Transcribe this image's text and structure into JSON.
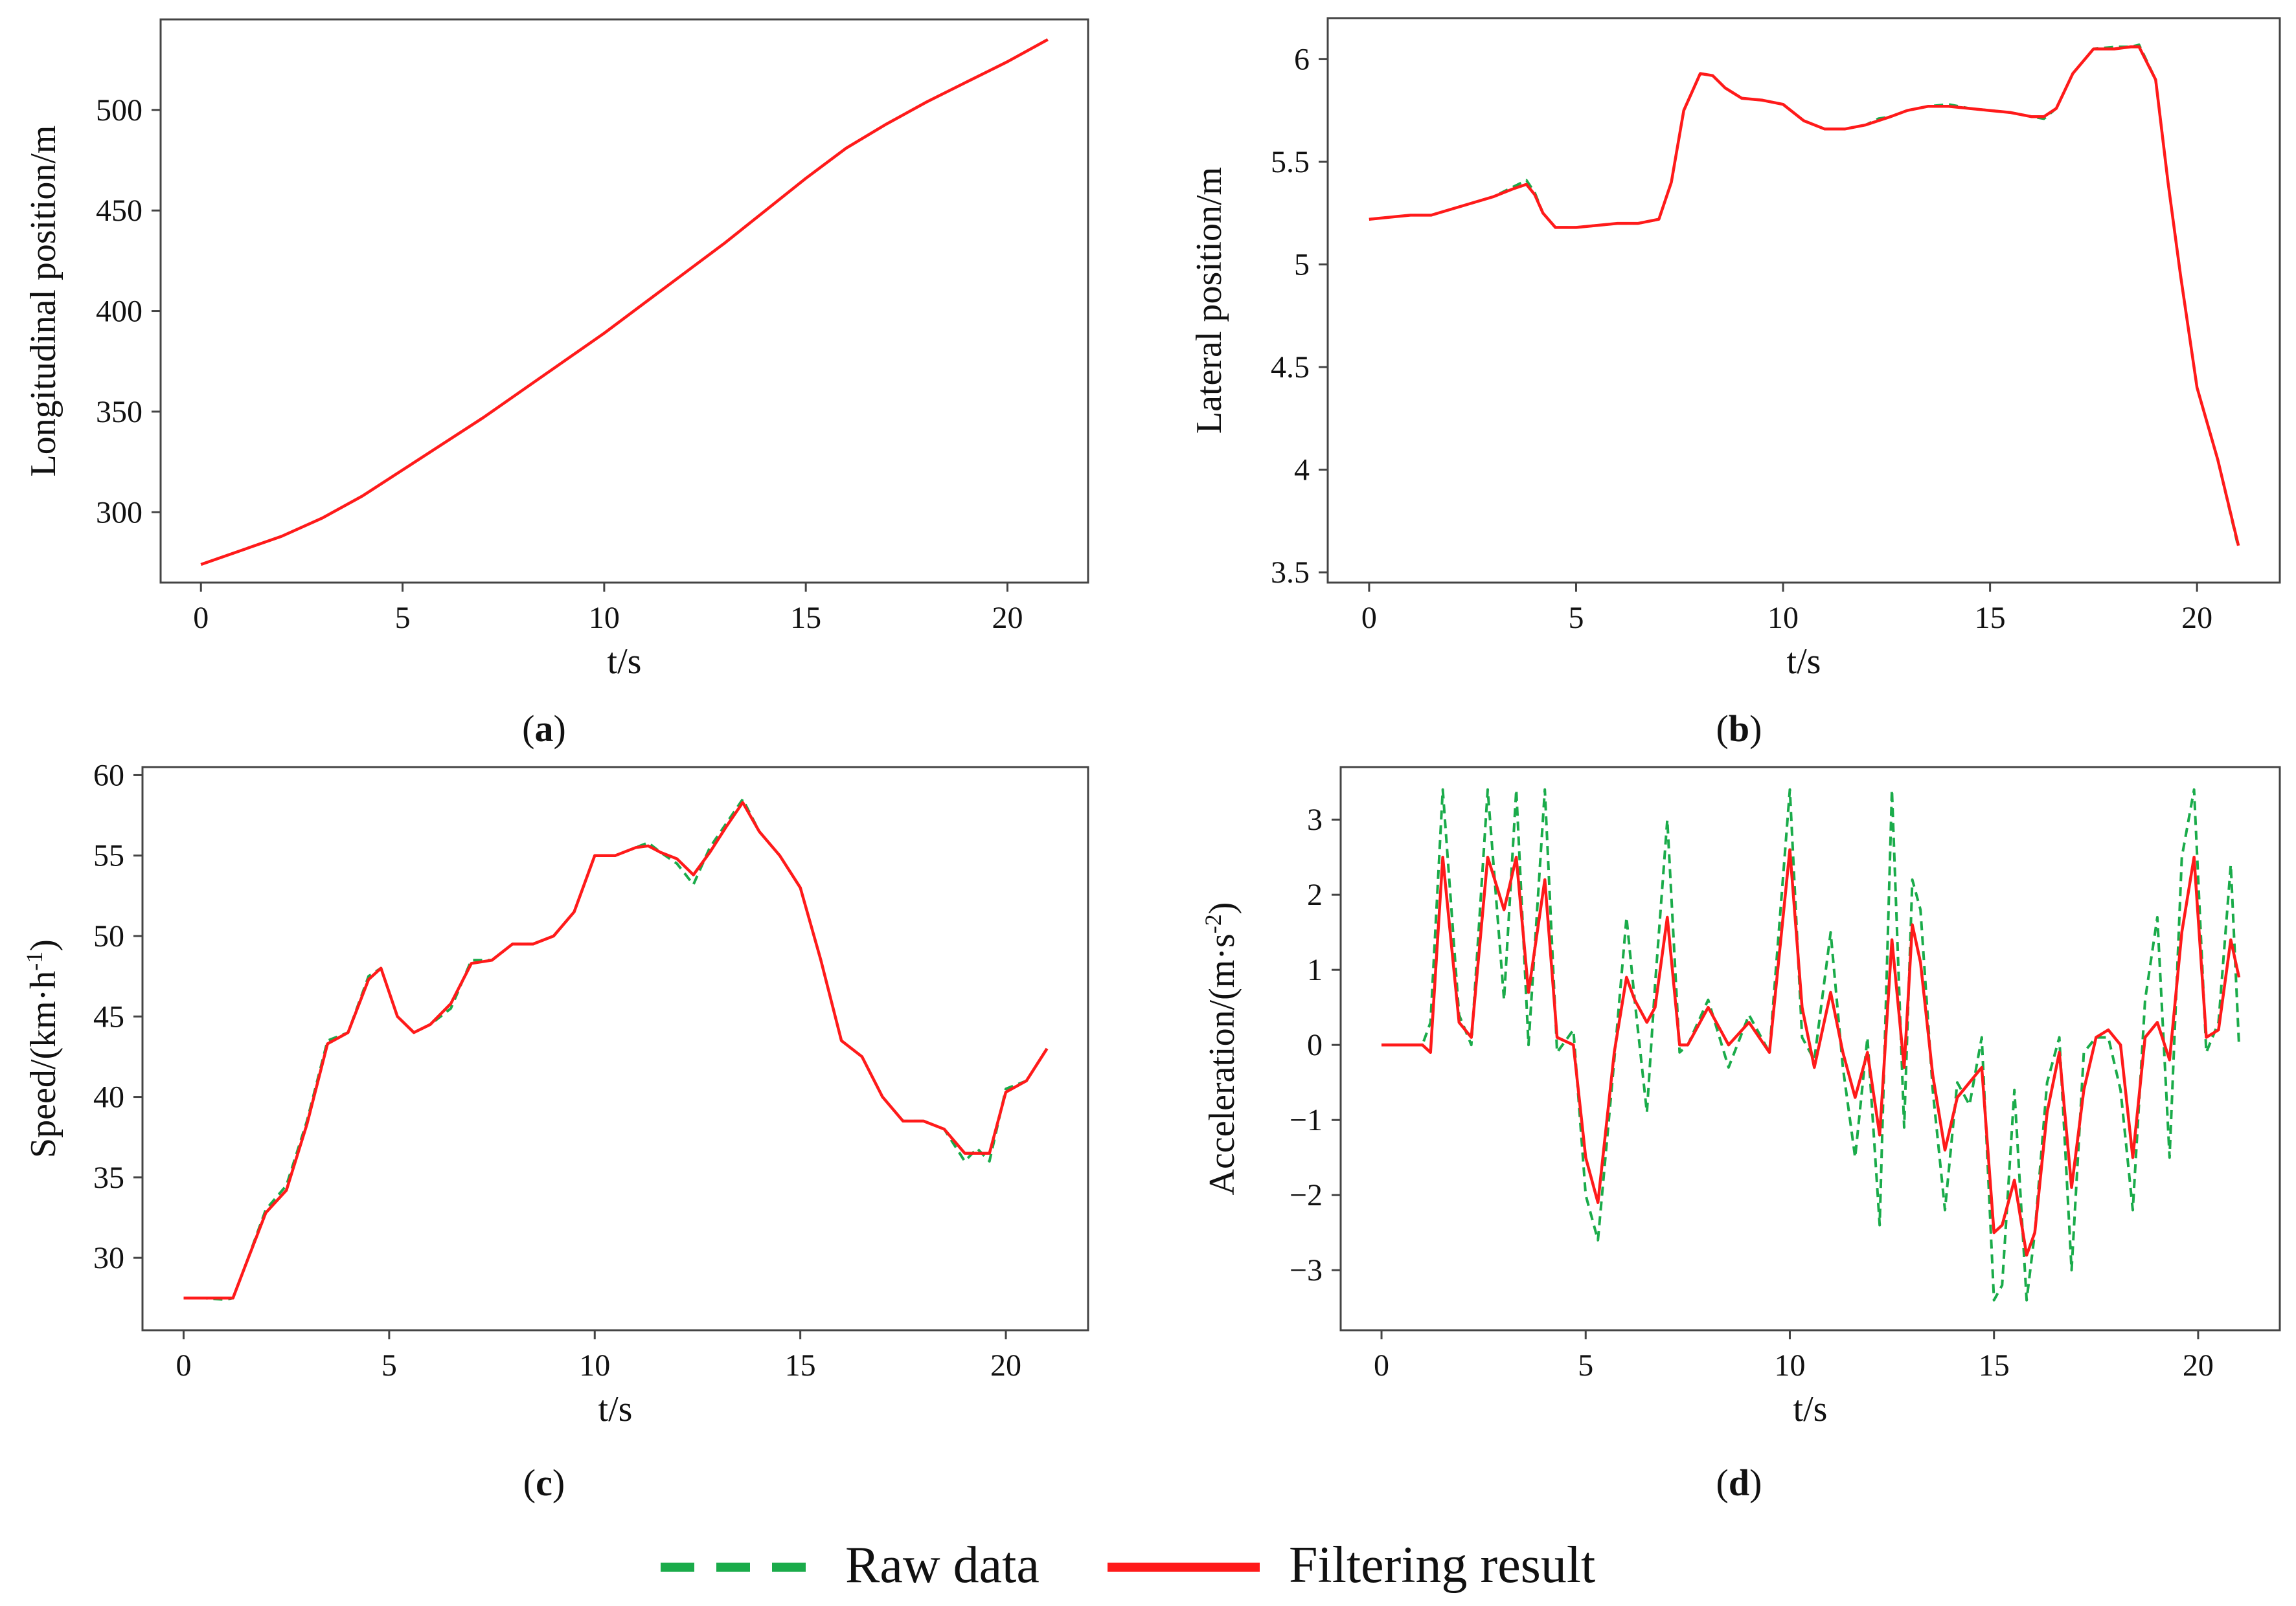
{
  "legend": [
    {
      "label": "Raw data",
      "color": "#1aab4a",
      "style": "dashed"
    },
    {
      "label": "Filtering result",
      "color": "#ff1a1a",
      "style": "solid"
    }
  ],
  "chart_data": [
    {
      "id": "a",
      "type": "line",
      "caption_letter": "a",
      "xlabel": "t/s",
      "ylabel": "Longitudinal position/m",
      "xlim": [
        -1,
        22
      ],
      "ylim": [
        265,
        545
      ],
      "xticks": [
        0,
        5,
        10,
        15,
        20
      ],
      "yticks": [
        300,
        350,
        400,
        450,
        500
      ],
      "series": [
        {
          "name": "Raw data",
          "x": [
            0,
            2,
            3,
            4,
            5,
            6,
            7,
            8,
            9,
            10,
            11,
            12,
            13,
            14,
            15,
            16,
            17,
            18,
            19,
            20,
            21
          ],
          "y": [
            274,
            288,
            297,
            308,
            321,
            334,
            347,
            361,
            375,
            389,
            404,
            419,
            434,
            450,
            466,
            481,
            493,
            504,
            514,
            524,
            535
          ]
        },
        {
          "name": "Filtering result",
          "x": [
            0,
            2,
            3,
            4,
            5,
            6,
            7,
            8,
            9,
            10,
            11,
            12,
            13,
            14,
            15,
            16,
            17,
            18,
            19,
            20,
            21
          ],
          "y": [
            274,
            288,
            297,
            308,
            321,
            334,
            347,
            361,
            375,
            389,
            404,
            419,
            434,
            450,
            466,
            481,
            493,
            504,
            514,
            524,
            535
          ]
        }
      ]
    },
    {
      "id": "b",
      "type": "line",
      "caption_letter": "b",
      "xlabel": "t/s",
      "ylabel": "Lateral position/m",
      "xlim": [
        -1,
        22
      ],
      "ylim": [
        3.45,
        6.2
      ],
      "xticks": [
        0,
        5,
        10,
        15,
        20
      ],
      "yticks": [
        3.5,
        4.0,
        4.5,
        5.0,
        5.5,
        6.0
      ],
      "series": [
        {
          "name": "Raw data",
          "x": [
            0,
            1,
            1.5,
            2,
            2.5,
            3,
            3.5,
            3.8,
            4,
            4.2,
            4.5,
            5,
            6,
            6.5,
            7,
            7.3,
            7.6,
            8,
            8.3,
            8.6,
            9,
            9.5,
            10,
            10.5,
            11,
            11.5,
            12,
            12.3,
            12.6,
            13,
            13.5,
            14,
            14.5,
            15,
            15.5,
            16,
            16.3,
            16.6,
            17,
            17.5,
            18,
            18.4,
            18.6,
            19,
            19.3,
            19.6,
            20,
            20.5,
            21
          ],
          "y": [
            5.22,
            5.24,
            5.24,
            5.27,
            5.3,
            5.33,
            5.38,
            5.41,
            5.35,
            5.25,
            5.18,
            5.18,
            5.2,
            5.2,
            5.22,
            5.4,
            5.75,
            5.93,
            5.92,
            5.86,
            5.81,
            5.8,
            5.78,
            5.7,
            5.66,
            5.66,
            5.68,
            5.71,
            5.72,
            5.75,
            5.77,
            5.78,
            5.76,
            5.75,
            5.74,
            5.72,
            5.71,
            5.76,
            5.93,
            6.05,
            6.06,
            6.06,
            6.07,
            5.9,
            5.4,
            4.95,
            4.4,
            4.05,
            3.62
          ]
        },
        {
          "name": "Filtering result",
          "x": [
            0,
            1,
            1.5,
            2,
            2.5,
            3,
            3.5,
            3.8,
            4,
            4.2,
            4.5,
            5,
            6,
            6.5,
            7,
            7.3,
            7.6,
            8,
            8.3,
            8.6,
            9,
            9.5,
            10,
            10.5,
            11,
            11.5,
            12,
            12.3,
            12.6,
            13,
            13.5,
            14,
            14.5,
            15,
            15.5,
            16,
            16.3,
            16.6,
            17,
            17.5,
            18,
            18.4,
            18.6,
            19,
            19.3,
            19.6,
            20,
            20.5,
            21
          ],
          "y": [
            5.22,
            5.24,
            5.24,
            5.27,
            5.3,
            5.33,
            5.37,
            5.39,
            5.34,
            5.25,
            5.18,
            5.18,
            5.2,
            5.2,
            5.22,
            5.4,
            5.75,
            5.93,
            5.92,
            5.86,
            5.81,
            5.8,
            5.78,
            5.7,
            5.66,
            5.66,
            5.68,
            5.7,
            5.72,
            5.75,
            5.77,
            5.77,
            5.76,
            5.75,
            5.74,
            5.72,
            5.72,
            5.76,
            5.93,
            6.05,
            6.05,
            6.06,
            6.06,
            5.9,
            5.4,
            4.95,
            4.4,
            4.05,
            3.63
          ]
        }
      ]
    },
    {
      "id": "c",
      "type": "line",
      "caption_letter": "c",
      "xlabel": "t/s",
      "ylabel": "Speed/(km·h",
      "ylabel_exp": "-1",
      "ylabel_tail": ")",
      "xlim": [
        -1,
        22
      ],
      "ylim": [
        25.5,
        60.5
      ],
      "xticks": [
        0,
        5,
        10,
        15,
        20
      ],
      "yticks": [
        30,
        35,
        40,
        45,
        50,
        55,
        60
      ],
      "series": [
        {
          "name": "Raw data",
          "x": [
            0,
            0.5,
            1,
            1.2,
            1.5,
            2,
            2.5,
            3,
            3.5,
            4,
            4.5,
            4.8,
            5.2,
            5.6,
            6,
            6.5,
            7,
            7.5,
            8,
            8.5,
            9,
            9.5,
            10,
            10.5,
            11,
            11.3,
            11.6,
            12,
            12.4,
            12.8,
            13.2,
            13.6,
            14,
            14.5,
            15,
            15.5,
            16,
            16.5,
            17,
            17.5,
            18,
            18.5,
            19,
            19.3,
            19.6,
            20,
            20.5,
            21
          ],
          "y": [
            27.5,
            27.5,
            27.4,
            27.5,
            29.5,
            33.0,
            34.5,
            38.5,
            43.5,
            44.0,
            47.5,
            48.0,
            45.0,
            44.0,
            44.5,
            45.5,
            48.5,
            48.5,
            49.5,
            49.5,
            50.0,
            51.5,
            55.0,
            55.0,
            55.5,
            55.8,
            55.2,
            54.5,
            53.2,
            55.5,
            57.0,
            58.5,
            56.5,
            55.0,
            53.0,
            48.5,
            43.5,
            42.5,
            40.0,
            38.5,
            38.5,
            38.0,
            36.0,
            36.8,
            36.0,
            40.5,
            41.0,
            43.0
          ]
        },
        {
          "name": "Filtering result",
          "x": [
            0,
            0.5,
            1,
            1.2,
            1.5,
            2,
            2.5,
            3,
            3.5,
            4,
            4.5,
            4.8,
            5.2,
            5.6,
            6,
            6.5,
            7,
            7.5,
            8,
            8.5,
            9,
            9.5,
            10,
            10.5,
            11,
            11.3,
            11.6,
            12,
            12.4,
            12.8,
            13.2,
            13.6,
            14,
            14.5,
            15,
            15.5,
            16,
            16.5,
            17,
            17.5,
            18,
            18.5,
            19,
            19.3,
            19.6,
            20,
            20.5,
            21
          ],
          "y": [
            27.5,
            27.5,
            27.5,
            27.5,
            29.5,
            32.8,
            34.2,
            38.3,
            43.3,
            44.0,
            47.3,
            48.0,
            45.0,
            44.0,
            44.5,
            45.8,
            48.3,
            48.5,
            49.5,
            49.5,
            50.0,
            51.5,
            55.0,
            55.0,
            55.5,
            55.6,
            55.2,
            54.8,
            53.8,
            55.2,
            56.8,
            58.3,
            56.5,
            55.0,
            53.0,
            48.5,
            43.5,
            42.5,
            40.0,
            38.5,
            38.5,
            38.0,
            36.5,
            36.5,
            36.5,
            40.3,
            41.0,
            43.0
          ]
        }
      ]
    },
    {
      "id": "d",
      "type": "line",
      "caption_letter": "d",
      "xlabel": "t/s",
      "ylabel": "Acceleration/(m·s",
      "ylabel_exp": "-2",
      "ylabel_tail": ")",
      "xlim": [
        -1,
        22
      ],
      "ylim": [
        -3.8,
        3.7
      ],
      "xticks": [
        0,
        5,
        10,
        15,
        20
      ],
      "yticks": [
        -3,
        -2,
        -1,
        0,
        1,
        2,
        3
      ],
      "series": [
        {
          "name": "Raw data",
          "x": [
            0,
            1,
            1.2,
            1.5,
            1.9,
            2.2,
            2.6,
            3.0,
            3.3,
            3.6,
            4.0,
            4.3,
            4.7,
            5.0,
            5.3,
            5.7,
            6.0,
            6.2,
            6.5,
            6.7,
            7.0,
            7.3,
            7.5,
            8.0,
            8.5,
            9.0,
            9.5,
            10.0,
            10.3,
            10.6,
            11.0,
            11.3,
            11.6,
            11.9,
            12.2,
            12.5,
            12.8,
            13.0,
            13.2,
            13.5,
            13.8,
            14.1,
            14.4,
            14.7,
            15.0,
            15.2,
            15.5,
            15.8,
            16.0,
            16.3,
            16.6,
            16.9,
            17.2,
            17.5,
            17.8,
            18.1,
            18.4,
            18.7,
            19.0,
            19.3,
            19.6,
            19.9,
            20.2,
            20.5,
            20.8,
            21.0
          ],
          "y": [
            0,
            0,
            0.3,
            3.4,
            0.4,
            0,
            3.4,
            0.6,
            3.4,
            0,
            3.4,
            -0.1,
            0.2,
            -2.0,
            -2.6,
            -0.2,
            1.7,
            0.6,
            -0.9,
            0.8,
            3.0,
            -0.1,
            0,
            0.6,
            -0.3,
            0.4,
            -0.1,
            3.4,
            0.1,
            -0.2,
            1.5,
            -0.3,
            -1.5,
            0.1,
            -2.4,
            3.4,
            -1.1,
            2.2,
            1.8,
            -0.6,
            -2.2,
            -0.5,
            -0.8,
            0.1,
            -3.4,
            -3.2,
            -0.6,
            -3.4,
            -2.5,
            -0.5,
            0.1,
            -3.0,
            -0.1,
            0.1,
            0.1,
            -0.6,
            -2.2,
            0.6,
            1.7,
            -1.5,
            2.5,
            3.4,
            -0.1,
            0.3,
            2.4,
            0
          ]
        },
        {
          "name": "Filtering result",
          "x": [
            0,
            1,
            1.2,
            1.5,
            1.9,
            2.2,
            2.6,
            3.0,
            3.3,
            3.6,
            4.0,
            4.3,
            4.7,
            5.0,
            5.3,
            5.7,
            6.0,
            6.2,
            6.5,
            6.7,
            7.0,
            7.3,
            7.5,
            8.0,
            8.5,
            9.0,
            9.5,
            10.0,
            10.3,
            10.6,
            11.0,
            11.3,
            11.6,
            11.9,
            12.2,
            12.5,
            12.8,
            13.0,
            13.2,
            13.5,
            13.8,
            14.1,
            14.4,
            14.7,
            15.0,
            15.2,
            15.5,
            15.8,
            16.0,
            16.3,
            16.6,
            16.9,
            17.2,
            17.5,
            17.8,
            18.1,
            18.4,
            18.7,
            19.0,
            19.3,
            19.6,
            19.9,
            20.2,
            20.5,
            20.8,
            21.0
          ],
          "y": [
            0,
            0,
            -0.1,
            2.5,
            0.3,
            0.1,
            2.5,
            1.8,
            2.5,
            0.7,
            2.2,
            0.1,
            0,
            -1.5,
            -2.1,
            -0.1,
            0.9,
            0.6,
            0.3,
            0.5,
            1.7,
            0,
            0,
            0.5,
            0,
            0.3,
            -0.1,
            2.6,
            0.5,
            -0.3,
            0.7,
            -0.1,
            -0.7,
            -0.1,
            -1.2,
            1.4,
            -0.3,
            1.6,
            1.1,
            -0.4,
            -1.4,
            -0.7,
            -0.5,
            -0.3,
            -2.5,
            -2.4,
            -1.8,
            -2.8,
            -2.5,
            -0.9,
            -0.1,
            -1.9,
            -0.6,
            0.1,
            0.2,
            0,
            -1.5,
            0.1,
            0.3,
            -0.2,
            1.5,
            2.5,
            0.1,
            0.2,
            1.4,
            0.9
          ]
        }
      ]
    }
  ]
}
